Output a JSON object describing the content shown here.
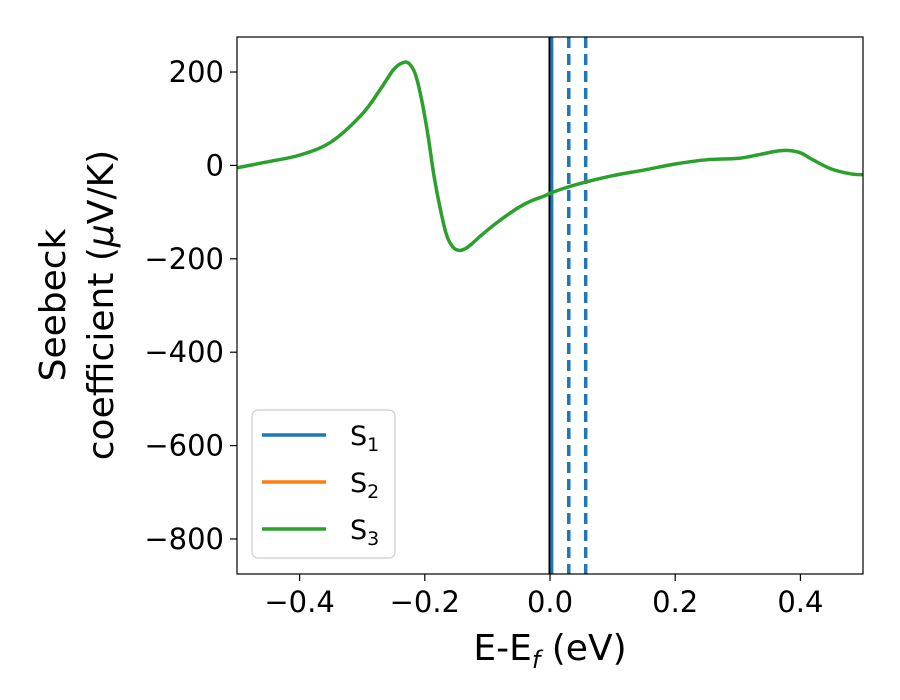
{
  "chart_data": {
    "type": "line",
    "xlabel": {
      "main": "E-E",
      "sub": "f",
      "unit": " (eV)"
    },
    "ylabel": {
      "line1": "Seebeck",
      "line2_prefix": "coefficient  (",
      "mu": "μ",
      "line2_suffix": "V/K)"
    },
    "xlim": [
      -0.5,
      0.5
    ],
    "ylim": [
      -875,
      275
    ],
    "xticks": [
      -0.4,
      -0.2,
      0.0,
      0.2,
      0.4
    ],
    "xtick_labels": [
      "−0.4",
      "−0.2",
      "0.0",
      "0.2",
      "0.4"
    ],
    "yticks": [
      200,
      0,
      -200,
      -400,
      -600,
      -800
    ],
    "ytick_labels": [
      "200",
      "0",
      "−200",
      "−400",
      "−600",
      "−800"
    ],
    "grid": false,
    "legend_position": "lower-left",
    "series": [
      {
        "name": "S",
        "sub": "1",
        "color": "#1f77b4"
      },
      {
        "name": "S",
        "sub": "2",
        "color": "#ff7f0e"
      },
      {
        "name": "S",
        "sub": "3",
        "color": "#2ca02c",
        "x": [
          -0.5,
          -0.45,
          -0.4,
          -0.35,
          -0.3,
          -0.27,
          -0.25,
          -0.235,
          -0.225,
          -0.215,
          -0.205,
          -0.195,
          -0.185,
          -0.175,
          -0.165,
          -0.155,
          -0.145,
          -0.135,
          -0.125,
          -0.11,
          -0.09,
          -0.07,
          -0.05,
          -0.03,
          -0.01,
          0.0,
          0.02,
          0.05,
          0.1,
          0.15,
          0.2,
          0.25,
          0.3,
          0.33,
          0.36,
          0.38,
          0.4,
          0.42,
          0.45,
          0.48,
          0.5
        ],
        "y": [
          -5,
          8,
          22,
          50,
          110,
          165,
          205,
          220,
          218,
          195,
          140,
          65,
          -25,
          -95,
          -150,
          -175,
          -182,
          -178,
          -168,
          -150,
          -128,
          -108,
          -90,
          -76,
          -66,
          -60,
          -50,
          -38,
          -22,
          -10,
          3,
          12,
          15,
          22,
          30,
          32,
          27,
          12,
          -8,
          -18,
          -20
        ]
      }
    ],
    "vlines": [
      {
        "x": 0.0,
        "color": "#000000",
        "style": "solid"
      },
      {
        "x": 0.003,
        "color": "#1f77b4",
        "style": "solid"
      },
      {
        "x": 0.03,
        "color": "#1f77b4",
        "style": "dashed"
      },
      {
        "x": 0.057,
        "color": "#1f77b4",
        "style": "dashed"
      }
    ]
  }
}
